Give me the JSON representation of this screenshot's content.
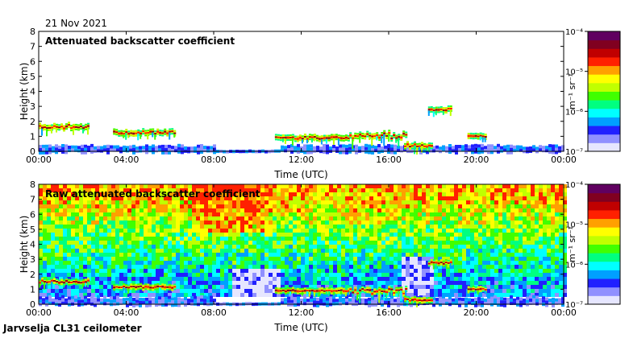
{
  "date_label": "21 Nov 2021",
  "footer_label": "Jarvselja CL31 ceilometer",
  "chart_data": [
    {
      "type": "heatmap",
      "title": "Attenuated backscatter coefficient",
      "xlabel": "Time (UTC)",
      "ylabel": "Height (km)",
      "x_ticks": [
        "00:00",
        "04:00",
        "08:00",
        "12:00",
        "16:00",
        "20:00",
        "00:00"
      ],
      "y_ticks": [
        "0",
        "1",
        "2",
        "3",
        "4",
        "5",
        "6",
        "7",
        "8"
      ],
      "ylim": [
        0,
        8
      ],
      "xlim_hours": [
        0,
        24
      ],
      "colorbar": {
        "unit": "m⁻¹ sr⁻¹",
        "ticks": [
          "10⁻⁷",
          "10⁻⁶",
          "10⁻⁵",
          "10⁻⁴"
        ],
        "colors": [
          "#e6e6ff",
          "#9090ff",
          "#2020ff",
          "#00a0ff",
          "#00ffff",
          "#00ff80",
          "#40ff00",
          "#c0ff00",
          "#ffff00",
          "#ffa000",
          "#ff2000",
          "#c00000",
          "#800020",
          "#600060"
        ]
      },
      "features": [
        {
          "name": "boundary layer",
          "hours": [
            0,
            24
          ],
          "height_km": [
            0,
            0.5
          ],
          "level": "low"
        },
        {
          "name": "cloud",
          "hours": [
            0.0,
            2.3
          ],
          "height_km": [
            1.3,
            2.1
          ],
          "level": "high"
        },
        {
          "name": "cloud",
          "hours": [
            3.4,
            6.2
          ],
          "height_km": [
            1.0,
            1.6
          ],
          "level": "high"
        },
        {
          "name": "cloud",
          "hours": [
            10.8,
            14.2
          ],
          "height_km": [
            0.7,
            1.2
          ],
          "level": "high"
        },
        {
          "name": "cloud",
          "hours": [
            14.2,
            16.8
          ],
          "height_km": [
            0.4,
            1.8
          ],
          "level": "high"
        },
        {
          "name": "cloud",
          "hours": [
            16.7,
            18.0
          ],
          "height_km": [
            0.1,
            0.8
          ],
          "level": "high"
        },
        {
          "name": "cloud",
          "hours": [
            17.8,
            18.9
          ],
          "height_km": [
            2.6,
            3.1
          ],
          "level": "high"
        },
        {
          "name": "cloud",
          "hours": [
            19.6,
            20.4
          ],
          "height_km": [
            0.9,
            1.2
          ],
          "level": "high"
        }
      ]
    },
    {
      "type": "heatmap",
      "title": "Raw attenuated backscatter coefficient",
      "xlabel": "Time (UTC)",
      "ylabel": "Height (km)",
      "x_ticks": [
        "00:00",
        "04:00",
        "08:00",
        "12:00",
        "16:00",
        "20:00",
        "00:00"
      ],
      "y_ticks": [
        "0",
        "1",
        "2",
        "3",
        "4",
        "5",
        "6",
        "7",
        "8"
      ],
      "ylim": [
        0,
        8
      ],
      "xlim_hours": [
        0,
        24
      ],
      "colorbar": {
        "unit": "m⁻¹ sr⁻¹",
        "ticks": [
          "10⁻⁷",
          "10⁻⁶",
          "10⁻⁵",
          "10⁻⁴"
        ],
        "colors": [
          "#e6e6ff",
          "#9090ff",
          "#2020ff",
          "#00a0ff",
          "#00ffff",
          "#00ff80",
          "#40ff00",
          "#c0ff00",
          "#ffff00",
          "#ffa000",
          "#ff2000",
          "#c00000",
          "#800020",
          "#600060"
        ]
      },
      "features": [
        {
          "name": "noise background",
          "hours": [
            0,
            24
          ],
          "height_km": [
            0.5,
            8
          ],
          "level": "noise"
        },
        {
          "name": "boundary layer",
          "hours": [
            0,
            24
          ],
          "height_km": [
            0,
            0.6
          ],
          "level": "low"
        },
        {
          "name": "cloud",
          "hours": [
            0.0,
            2.3
          ],
          "height_km": [
            1.3,
            1.8
          ],
          "level": "high"
        },
        {
          "name": "cloud",
          "hours": [
            3.4,
            6.2
          ],
          "height_km": [
            1.0,
            1.4
          ],
          "level": "high"
        },
        {
          "name": "cloud",
          "hours": [
            10.8,
            14.2
          ],
          "height_km": [
            0.8,
            1.1
          ],
          "level": "high"
        },
        {
          "name": "cloud",
          "hours": [
            14.2,
            16.8
          ],
          "height_km": [
            0.3,
            1.5
          ],
          "level": "high"
        },
        {
          "name": "cloud",
          "hours": [
            16.7,
            18.0
          ],
          "height_km": [
            0.1,
            0.6
          ],
          "level": "high"
        },
        {
          "name": "cloud",
          "hours": [
            17.8,
            18.9
          ],
          "height_km": [
            2.6,
            3.0
          ],
          "level": "high"
        },
        {
          "name": "cloud",
          "hours": [
            19.6,
            20.4
          ],
          "height_km": [
            0.9,
            1.2
          ],
          "level": "high"
        }
      ]
    }
  ]
}
